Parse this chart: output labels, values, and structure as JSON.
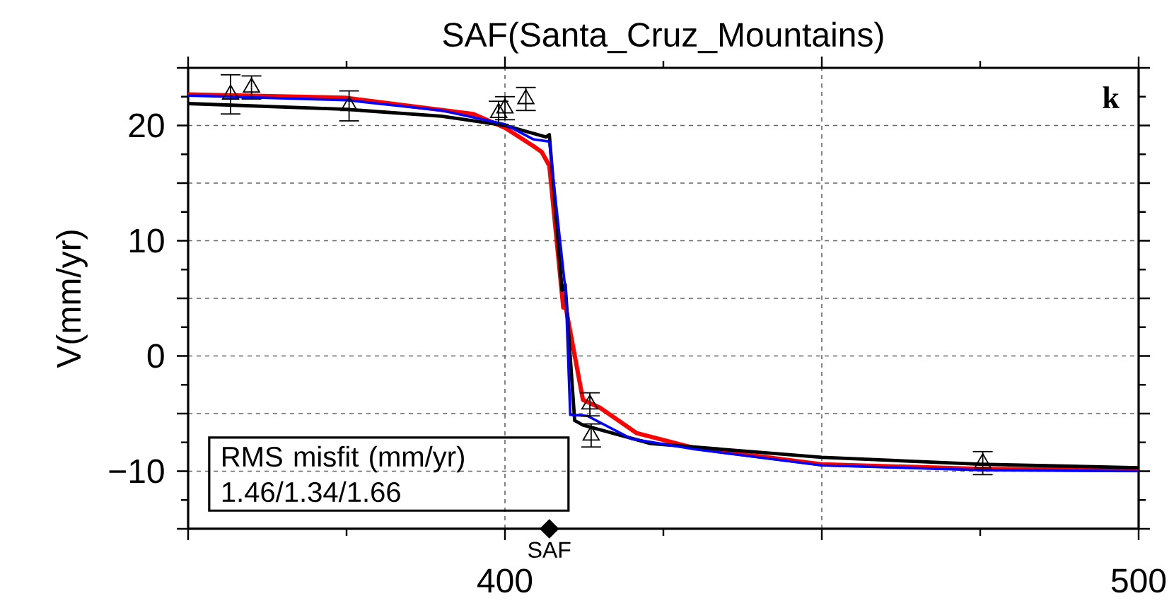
{
  "chart_data": {
    "type": "line",
    "title": "SAF(Santa_Cruz_Mountains)",
    "ylabel": "V(mm/yr)",
    "xlim": [
      350,
      500
    ],
    "ylim": [
      -15,
      25
    ],
    "xticks": [
      {
        "value": 350,
        "label": null
      },
      400,
      {
        "value": 450,
        "label": null
      },
      500
    ],
    "yticks": [
      {
        "value": -15,
        "label": null
      },
      {
        "value": -10,
        "label": "−10"
      },
      {
        "value": -5,
        "label": null
      },
      0,
      {
        "value": 5,
        "label": null
      },
      10,
      {
        "value": 15,
        "label": null
      },
      20,
      {
        "value": 25,
        "label": null
      }
    ],
    "grid": true,
    "series": [
      {
        "color": "#ff0000",
        "line_style": "solid",
        "x": [
          350,
          375,
          395,
          400,
          404.5,
          405.8,
          407,
          409.2,
          409.6,
          412.3,
          415,
          420.8,
          430,
          450,
          475,
          500
        ],
        "values": [
          22.7,
          22.4,
          21.0,
          19.8,
          18.2,
          17.7,
          16.5,
          4.2,
          4.2,
          -3.8,
          -4.5,
          -6.7,
          -8.0,
          -9.4,
          -9.8,
          -9.9
        ]
      },
      {
        "color": "#000000",
        "line_style": "solid",
        "x": [
          350,
          375,
          390,
          400,
          406.5,
          407,
          409,
          409.5,
          411,
          412.3,
          423,
          450,
          475,
          500
        ],
        "values": [
          21.9,
          21.4,
          20.8,
          20.0,
          19.0,
          19.2,
          5.7,
          6.2,
          -5.6,
          -6.0,
          -7.6,
          -8.8,
          -9.4,
          -9.7
        ]
      },
      {
        "color": "#0000ff",
        "line_style": "solid",
        "x": [
          350,
          375,
          390,
          400,
          404.5,
          407,
          407.5,
          409.6,
          410.3,
          413,
          420,
          430,
          450,
          475,
          500
        ],
        "values": [
          22.6,
          22.2,
          21.3,
          20.1,
          18.8,
          18.6,
          16.0,
          5.4,
          -5.1,
          -5.2,
          -7.2,
          -8.1,
          -9.5,
          -9.9,
          -10.0
        ]
      },
      {
        "type": "scatter",
        "color": "#000000",
        "marker": "triangle",
        "x": [
          356.7,
          360,
          375.4,
          399,
          400,
          403.3,
          413.4,
          413.6,
          475.4
        ],
        "values": [
          22.7,
          23.3,
          21.7,
          21.1,
          21.5,
          22.3,
          -4.2,
          -6.9,
          -9.3
        ],
        "errors": [
          1.7,
          1.0,
          1.3,
          1.0,
          1.0,
          1.0,
          1.0,
          1.0,
          1.0
        ]
      }
    ],
    "annotations": [
      "RMS misfit (mm/yr)",
      "1.46/1.34/1.66",
      "k",
      {
        "text": "SAF",
        "x": 407,
        "y": -15
      }
    ]
  }
}
